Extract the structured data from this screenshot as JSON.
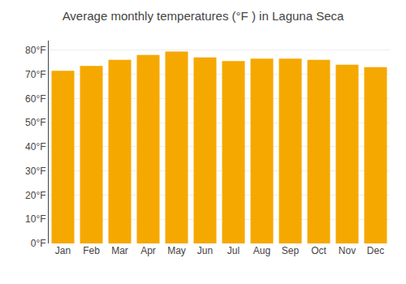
{
  "chart_data": {
    "type": "bar",
    "title": "Average monthly temperatures (°F ) in Laguna Seca",
    "categories": [
      "Jan",
      "Feb",
      "Mar",
      "Apr",
      "May",
      "Jun",
      "Jul",
      "Aug",
      "Sep",
      "Oct",
      "Nov",
      "Dec"
    ],
    "values": [
      71.5,
      73.5,
      76.0,
      78.0,
      79.5,
      77.0,
      75.5,
      76.5,
      76.5,
      76.0,
      74.0,
      73.0
    ],
    "color": "#F5A800",
    "ylim": [
      0,
      84
    ],
    "yticks": [
      {
        "value": 0,
        "label": "0°F"
      },
      {
        "value": 10,
        "label": "10°F"
      },
      {
        "value": 20,
        "label": "20°F"
      },
      {
        "value": 30,
        "label": "30°F"
      },
      {
        "value": 40,
        "label": "40°F"
      },
      {
        "value": 50,
        "label": "50°F"
      },
      {
        "value": 60,
        "label": "60°F"
      },
      {
        "value": 70,
        "label": "70°F"
      },
      {
        "value": 80,
        "label": "80°F"
      }
    ],
    "grid": true
  }
}
